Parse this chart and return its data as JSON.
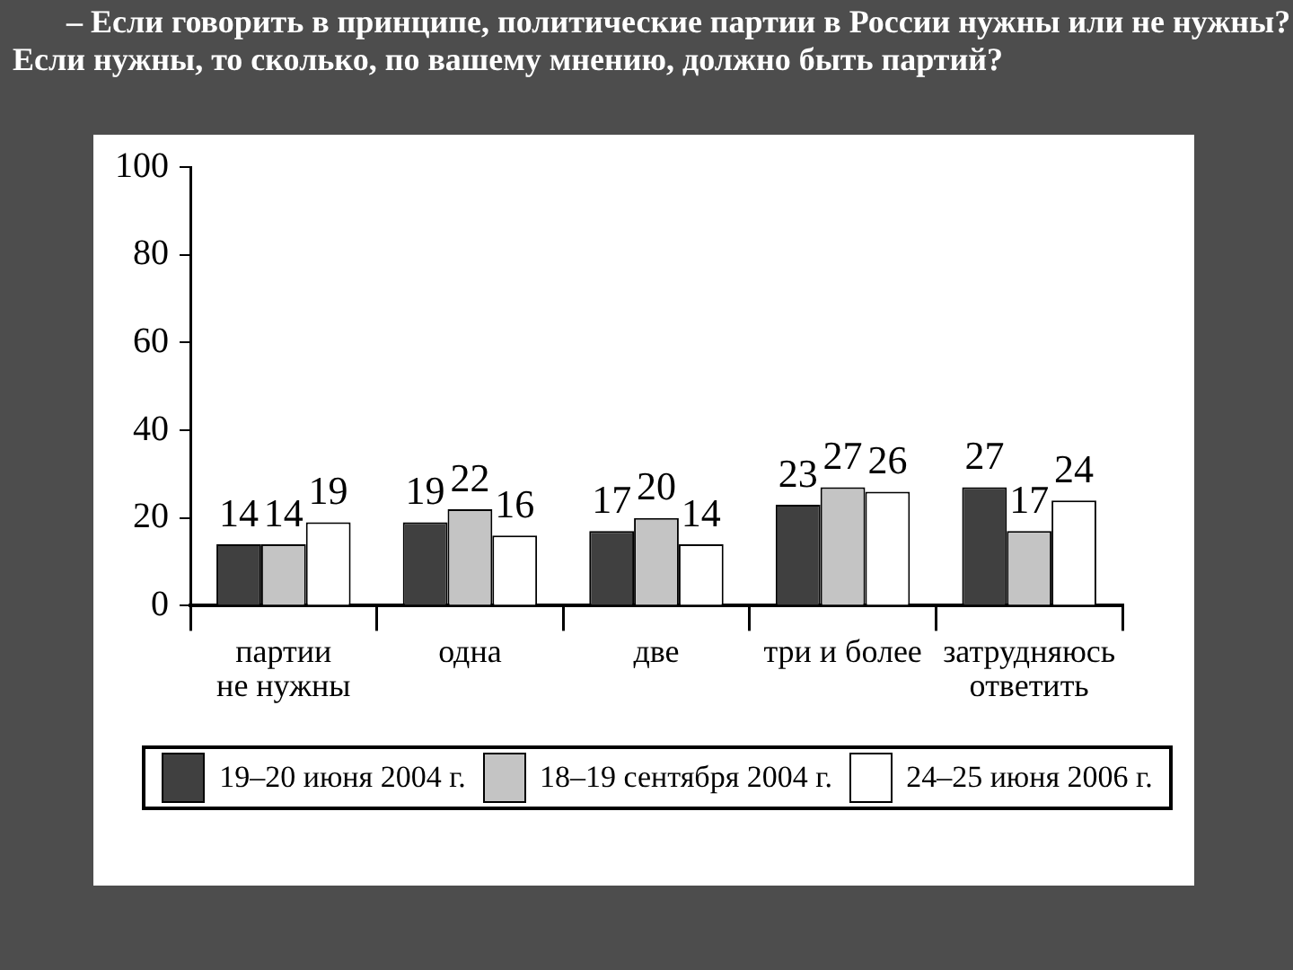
{
  "chart_data": {
    "type": "bar",
    "title": "– Если говорить в принципе, политические партии в России нужны или не нужны?\nЕсли нужны, то сколько, по вашему мнению, должно быть партий?",
    "categories": [
      "партии\nне нужны",
      "одна",
      "две",
      "три и более",
      "затрудняюсь\nответить"
    ],
    "series": [
      {
        "name": "19–20 июня 2004 г.",
        "color": "#404040",
        "values": [
          14,
          19,
          17,
          23,
          27
        ]
      },
      {
        "name": "18–19 сентября 2004 г.",
        "color": "#c4c4c4",
        "values": [
          14,
          22,
          20,
          27,
          17
        ]
      },
      {
        "name": "24–25 июня 2006 г.",
        "color": "#ffffff",
        "values": [
          19,
          16,
          14,
          26,
          24
        ]
      }
    ],
    "ylim": [
      0,
      100
    ],
    "yticks": [
      0,
      20,
      40,
      60,
      80,
      100
    ],
    "data_labels": true,
    "legend": "bottom"
  }
}
